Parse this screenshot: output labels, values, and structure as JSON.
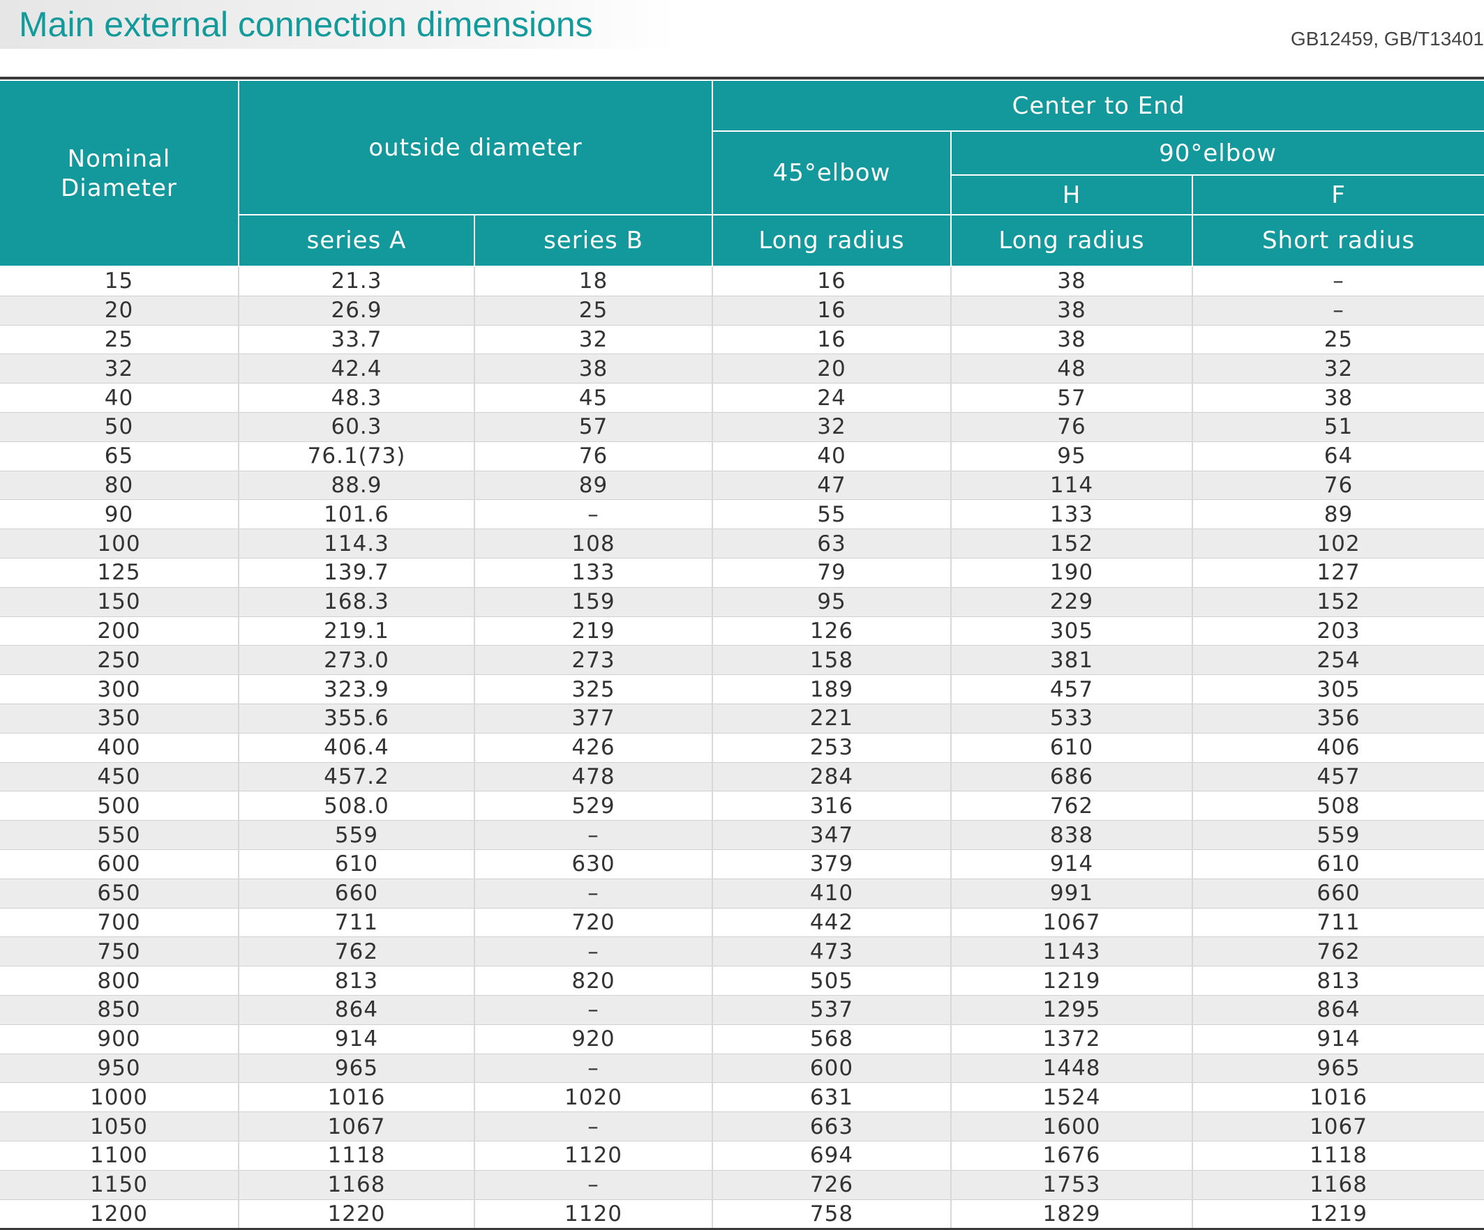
{
  "title": "Main external connection dimensions",
  "standard": "GB12459, GB/T13401",
  "table": {
    "header": {
      "nominal_diameter": "Nominal Diameter",
      "outside_diameter": "outside diameter",
      "center_to_end": "Center to End",
      "elbow_45": "45°elbow",
      "elbow_90": "90°elbow",
      "h": "H",
      "f": "F",
      "series_a": "series A",
      "series_b": "series B",
      "long_radius_45": "Long radius",
      "long_radius_90": "Long radius",
      "short_radius": "Short radius"
    },
    "rows": [
      [
        "15",
        "21.3",
        "18",
        "16",
        "38",
        "–"
      ],
      [
        "20",
        "26.9",
        "25",
        "16",
        "38",
        "–"
      ],
      [
        "25",
        "33.7",
        "32",
        "16",
        "38",
        "25"
      ],
      [
        "32",
        "42.4",
        "38",
        "20",
        "48",
        "32"
      ],
      [
        "40",
        "48.3",
        "45",
        "24",
        "57",
        "38"
      ],
      [
        "50",
        "60.3",
        "57",
        "32",
        "76",
        "51"
      ],
      [
        "65",
        "76.1(73)",
        "76",
        "40",
        "95",
        "64"
      ],
      [
        "80",
        "88.9",
        "89",
        "47",
        "114",
        "76"
      ],
      [
        "90",
        "101.6",
        "–",
        "55",
        "133",
        "89"
      ],
      [
        "100",
        "114.3",
        "108",
        "63",
        "152",
        "102"
      ],
      [
        "125",
        "139.7",
        "133",
        "79",
        "190",
        "127"
      ],
      [
        "150",
        "168.3",
        "159",
        "95",
        "229",
        "152"
      ],
      [
        "200",
        "219.1",
        "219",
        "126",
        "305",
        "203"
      ],
      [
        "250",
        "273.0",
        "273",
        "158",
        "381",
        "254"
      ],
      [
        "300",
        "323.9",
        "325",
        "189",
        "457",
        "305"
      ],
      [
        "350",
        "355.6",
        "377",
        "221",
        "533",
        "356"
      ],
      [
        "400",
        "406.4",
        "426",
        "253",
        "610",
        "406"
      ],
      [
        "450",
        "457.2",
        "478",
        "284",
        "686",
        "457"
      ],
      [
        "500",
        "508.0",
        "529",
        "316",
        "762",
        "508"
      ],
      [
        "550",
        "559",
        "–",
        "347",
        "838",
        "559"
      ],
      [
        "600",
        "610",
        "630",
        "379",
        "914",
        "610"
      ],
      [
        "650",
        "660",
        "–",
        "410",
        "991",
        "660"
      ],
      [
        "700",
        "711",
        "720",
        "442",
        "1067",
        "711"
      ],
      [
        "750",
        "762",
        "–",
        "473",
        "1143",
        "762"
      ],
      [
        "800",
        "813",
        "820",
        "505",
        "1219",
        "813"
      ],
      [
        "850",
        "864",
        "–",
        "537",
        "1295",
        "864"
      ],
      [
        "900",
        "914",
        "920",
        "568",
        "1372",
        "914"
      ],
      [
        "950",
        "965",
        "–",
        "600",
        "1448",
        "965"
      ],
      [
        "1000",
        "1016",
        "1020",
        "631",
        "1524",
        "1016"
      ],
      [
        "1050",
        "1067",
        "–",
        "663",
        "1600",
        "1067"
      ],
      [
        "1100",
        "1118",
        "1120",
        "694",
        "1676",
        "1118"
      ],
      [
        "1150",
        "1168",
        "–",
        "726",
        "1753",
        "1168"
      ],
      [
        "1200",
        "1220",
        "1120",
        "758",
        "1829",
        "1219"
      ]
    ]
  }
}
